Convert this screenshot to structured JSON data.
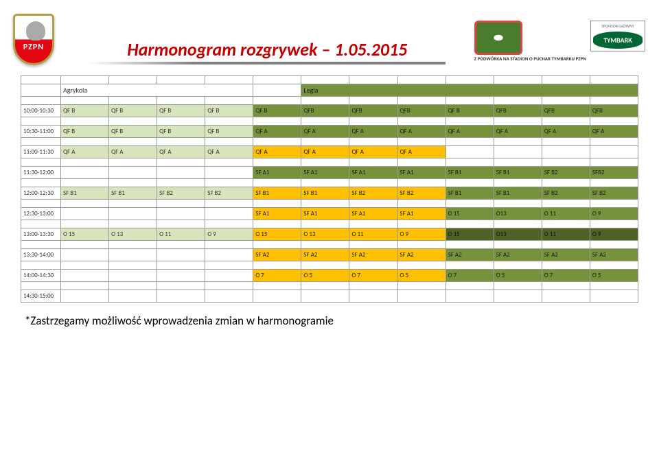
{
  "logos": {
    "pzpn": "PZPN",
    "stadium_caption": "Z PODWÓRKA NA STADION O PUCHAR TYMBARKU PZPN",
    "sponsor_label": "SPONSOR GŁÓWNY",
    "tymbark": "TYMBARK"
  },
  "title": "Harmonogram rozgrywek – 1.05.2015",
  "venues": {
    "left": "Agrykola",
    "right": "Legia"
  },
  "rows": [
    {
      "time": "10:00-10:30",
      "left": {
        "cells": [
          "QF B",
          "QF B",
          "QF B",
          "QF B"
        ],
        "class": "c-ltgreen"
      },
      "midL": {
        "cells": [
          "QF B",
          "QFB",
          "QFB",
          "QFB"
        ],
        "class": "c-green"
      },
      "midR": {
        "cells": [
          "QF B",
          "QFB",
          "QFB",
          "QFB"
        ],
        "class": "c-green"
      },
      "right": null
    },
    {
      "time": "10:30-11:00",
      "left": {
        "cells": [
          "QF B",
          "QF B",
          "QF B",
          "QF B"
        ],
        "class": "c-ltgreen"
      },
      "midL": {
        "cells": [
          "QF A",
          "QF A",
          "QF A",
          "QF A"
        ],
        "class": "c-green"
      },
      "midR": {
        "cells": [
          "QF A",
          "QF A",
          "QF A",
          "QF A"
        ],
        "class": "c-green"
      },
      "right": null
    },
    {
      "time": "11:00-11:30",
      "left": {
        "cells": [
          "QF A",
          "QF A",
          "QF A",
          "QF A"
        ],
        "class": "c-ltgreen"
      },
      "midL": {
        "cells": [
          "QF A",
          "QF A",
          "QF A",
          "QF A"
        ],
        "class": "c-yellow"
      },
      "midR": null,
      "right": null
    },
    {
      "time": "11:30-12:00",
      "left": null,
      "midL": {
        "cells": [
          "SF A1",
          "SF A1",
          "SF A1",
          "SF A1"
        ],
        "class": "c-green"
      },
      "midR": {
        "cells": [
          "SF B1",
          "SF B1",
          "SF B2",
          "SFB2"
        ],
        "class": "c-green"
      },
      "right": null
    },
    {
      "time": "12:00-12:30",
      "left": {
        "cells": [
          "SF B1",
          "SF B1",
          "SF B2",
          "SF B2"
        ],
        "class": "c-ltgreen"
      },
      "midL": {
        "cells": [
          "SF B1",
          "SF B1",
          "SF B2",
          "SF B2"
        ],
        "class": "c-yellow"
      },
      "midR": {
        "cells": [
          "SF B1",
          "SF B1",
          "SF B2",
          "SF B2"
        ],
        "class": "c-green"
      },
      "right": null
    },
    {
      "time": "12:30-13:00",
      "left": null,
      "midL": {
        "cells": [
          "SF A1",
          "SF A1",
          "SF A1",
          "SF A1"
        ],
        "class": "c-yellow"
      },
      "midR": {
        "cells": [
          "O 15",
          "O13",
          "O 11",
          "O 9"
        ],
        "class": "c-green"
      },
      "right": null
    },
    {
      "time": "13:00-13:30",
      "left": {
        "cells": [
          "O 15",
          "O 13",
          "O 11",
          "O 9"
        ],
        "class": "c-ltgreen"
      },
      "midL": {
        "cells": [
          "O 15",
          "O 13",
          "O 11",
          "O 9"
        ],
        "class": "c-yellow"
      },
      "midR": {
        "cells": [
          "O 15",
          "O13",
          "O 11",
          "O 9"
        ],
        "class": "c-green2"
      },
      "right": null
    },
    {
      "time": "13:30-14:00",
      "left": null,
      "midL": {
        "cells": [
          "SF A2",
          "SF A2",
          "SF A2",
          "SF A2"
        ],
        "class": "c-yellow"
      },
      "midR": {
        "cells": [
          "SF A2",
          "SF A2",
          "SF A2",
          "SF A2"
        ],
        "class": "c-green"
      },
      "right": null
    },
    {
      "time": "14:00-14:30",
      "left": null,
      "midL": {
        "cells": [
          "O 7",
          "O 5",
          "O 7",
          "O 5"
        ],
        "class": "c-yellow"
      },
      "midR": {
        "cells": [
          "O 7",
          "O 5",
          "O 7",
          "O 5"
        ],
        "class": "c-green"
      },
      "right": null
    },
    {
      "time": "14:30-15:00",
      "left": null,
      "midL": null,
      "midR": null,
      "right": null
    }
  ],
  "colors": {
    "ltgreen": "#d8e4bc",
    "green": "#76933c",
    "green2": "#4f6228",
    "yellow": "#ffc000",
    "title": "#c00000"
  },
  "footnote": "*Zastrzegamy możliwość wprowadzenia zmian w harmonogramie"
}
